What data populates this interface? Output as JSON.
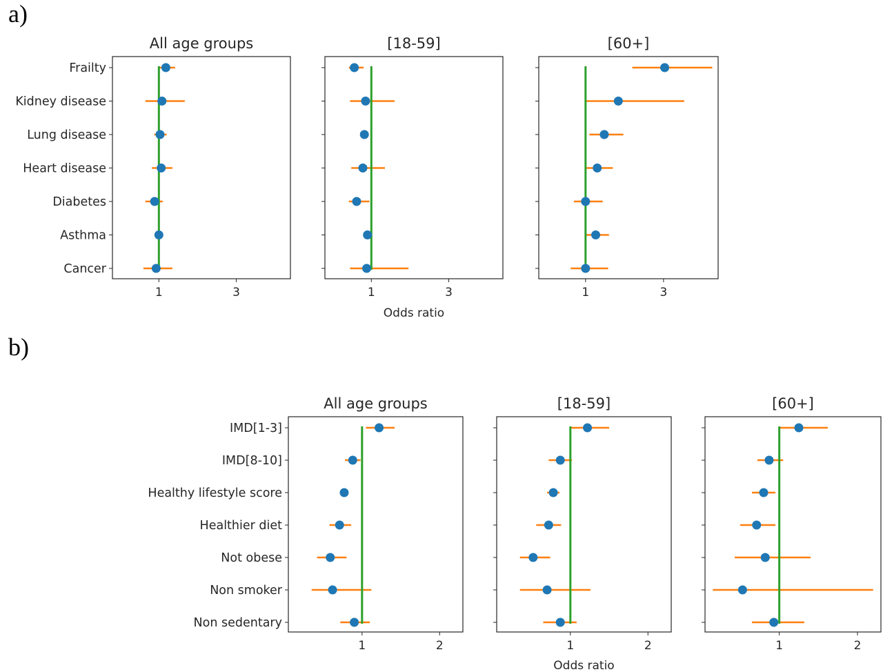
{
  "panel_labels": [
    "a)",
    "b)"
  ],
  "colors": {
    "point": "#1f77b4",
    "ci": "#ff7f0e",
    "reference": "#2ca02c",
    "axis": "#262626"
  },
  "chart_data": [
    {
      "id": "a",
      "type": "scatter",
      "style": "forest-plot (odds ratio with confidence interval)",
      "xlabel": "Odds ratio",
      "reference_line": 1,
      "xticks": [
        1,
        3
      ],
      "xlim": [
        -0.2,
        4.4
      ],
      "categories": [
        "Frailty",
        "Kidney disease",
        "Lung disease",
        "Heart disease",
        "Diabetes",
        "Asthma",
        "Cancer"
      ],
      "subplots": [
        {
          "title": "All age groups",
          "or": [
            1.18,
            1.08,
            1.03,
            1.06,
            0.89,
            1.0,
            0.93
          ],
          "low": [
            0.98,
            0.65,
            0.88,
            0.82,
            0.65,
            0.92,
            0.6
          ],
          "high": [
            1.42,
            1.67,
            1.2,
            1.35,
            1.1,
            1.1,
            1.35
          ]
        },
        {
          "title": "[18-59]",
          "or": [
            0.56,
            0.85,
            0.82,
            0.78,
            0.62,
            0.9,
            0.88
          ],
          "low": [
            0.42,
            0.45,
            0.75,
            0.48,
            0.42,
            0.82,
            0.45
          ],
          "high": [
            0.8,
            1.6,
            0.9,
            1.35,
            0.95,
            0.98,
            1.96
          ]
        },
        {
          "title": "[60+]",
          "or": [
            3.03,
            1.84,
            1.48,
            1.3,
            1.0,
            1.26,
            1.0
          ],
          "low": [
            2.2,
            1.0,
            1.1,
            1.02,
            0.7,
            1.0,
            0.62
          ],
          "high": [
            4.25,
            3.53,
            1.97,
            1.7,
            1.44,
            1.6,
            1.58
          ]
        }
      ]
    },
    {
      "id": "b",
      "type": "scatter",
      "style": "forest-plot (odds ratio with confidence interval)",
      "xlabel": "Odds ratio",
      "reference_line": 1,
      "xticks": [
        1,
        2
      ],
      "xlim": [
        0.05,
        2.3
      ],
      "categories": [
        "IMD[1-3]",
        "IMD[8-10]",
        "Healthy lifestyle score",
        "Healthier diet",
        "Not obese",
        "Non smoker",
        "Non sedentary"
      ],
      "subplots": [
        {
          "title": "All age groups",
          "or": [
            1.22,
            0.88,
            0.77,
            0.71,
            0.59,
            0.62,
            0.9
          ],
          "low": [
            1.05,
            0.78,
            0.72,
            0.58,
            0.42,
            0.35,
            0.72
          ],
          "high": [
            1.42,
            0.98,
            0.82,
            0.86,
            0.8,
            1.12,
            1.1
          ]
        },
        {
          "title": "[18-59]",
          "or": [
            1.22,
            0.87,
            0.78,
            0.72,
            0.52,
            0.7,
            0.87
          ],
          "low": [
            1.0,
            0.72,
            0.7,
            0.56,
            0.35,
            0.35,
            0.65
          ],
          "high": [
            1.5,
            1.02,
            0.86,
            0.88,
            0.74,
            1.26,
            1.08
          ]
        },
        {
          "title": "[60+]",
          "or": [
            1.25,
            0.87,
            0.8,
            0.71,
            0.82,
            0.53,
            0.93
          ],
          "low": [
            1.0,
            0.72,
            0.65,
            0.5,
            0.43,
            0.15,
            0.65
          ],
          "high": [
            1.62,
            1.05,
            0.95,
            0.95,
            1.4,
            2.2,
            1.32
          ]
        }
      ]
    }
  ]
}
